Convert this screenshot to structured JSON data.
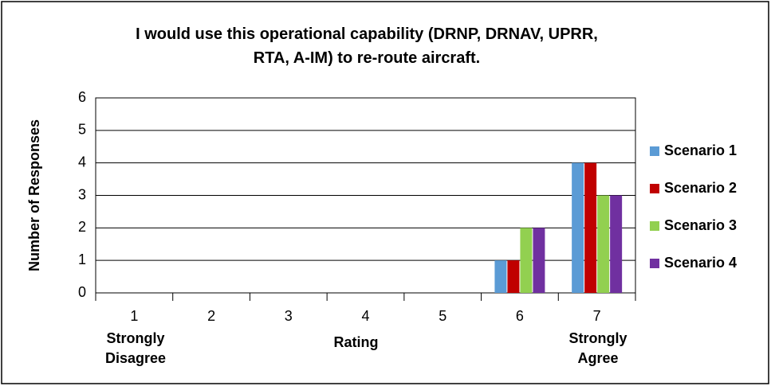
{
  "chart_data": {
    "type": "bar",
    "title": "I would use this operational capability (DRNP, DRNAV, UPRR, RTA, A-IM) to re-route aircraft.",
    "x_label": "Rating",
    "y_label": "Number of Responses",
    "annotations": [
      "Strongly Disagree",
      "Strongly Agree"
    ],
    "categories": [
      "1",
      "2",
      "3",
      "4",
      "5",
      "6",
      "7"
    ],
    "series": [
      {
        "name": "Scenario 1",
        "color": "#5b9bd5",
        "values": [
          0,
          0,
          0,
          0,
          0,
          1,
          4
        ]
      },
      {
        "name": "Scenario 2",
        "color": "#c00000",
        "values": [
          0,
          0,
          0,
          0,
          0,
          1,
          4
        ]
      },
      {
        "name": "Scenario 3",
        "color": "#92d050",
        "values": [
          0,
          0,
          0,
          0,
          0,
          2,
          3
        ]
      },
      {
        "name": "Scenario 4",
        "color": "#7030a0",
        "values": [
          0,
          0,
          0,
          0,
          0,
          2,
          3
        ]
      }
    ],
    "ylim": [
      0,
      6
    ],
    "yticks": [
      0,
      1,
      2,
      3,
      4,
      5,
      6
    ],
    "grid": true,
    "legend": "right"
  }
}
